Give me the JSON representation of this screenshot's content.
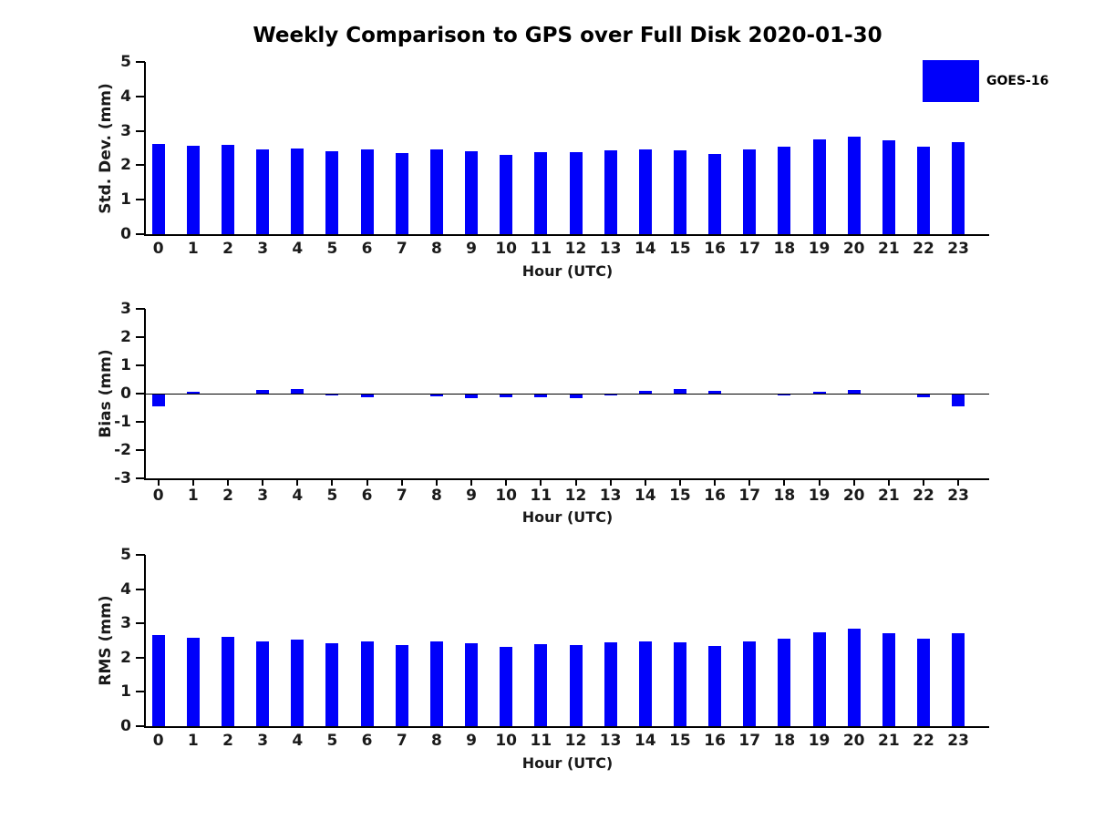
{
  "title": "Weekly Comparison to GPS over Full Disk 2020-01-30",
  "legend": {
    "label": "GOES-16",
    "color": "#0000FA"
  },
  "bar_color": "#0000FA",
  "axis_color": "#000000",
  "chart_data": [
    {
      "type": "bar",
      "name": "stddev-chart",
      "ylabel": "Std. Dev. (mm)",
      "xlabel": "Hour (UTC)",
      "ylim": [
        0,
        5
      ],
      "yticks": [
        0,
        1,
        2,
        3,
        4,
        5
      ],
      "grid": false,
      "legend_label": "GOES-16",
      "categories": [
        "0",
        "1",
        "2",
        "3",
        "4",
        "5",
        "6",
        "7",
        "8",
        "9",
        "10",
        "11",
        "12",
        "13",
        "14",
        "15",
        "16",
        "17",
        "18",
        "19",
        "20",
        "21",
        "22",
        "23"
      ],
      "values": [
        2.63,
        2.57,
        2.6,
        2.46,
        2.5,
        2.41,
        2.45,
        2.36,
        2.45,
        2.4,
        2.31,
        2.39,
        2.37,
        2.43,
        2.47,
        2.43,
        2.34,
        2.46,
        2.55,
        2.74,
        2.82,
        2.72,
        2.53,
        2.67
      ]
    },
    {
      "type": "bar",
      "name": "bias-chart",
      "ylabel": "Bias (mm)",
      "xlabel": "Hour (UTC)",
      "ylim": [
        -3,
        3
      ],
      "yticks": [
        -3,
        -2,
        -1,
        0,
        1,
        2,
        3
      ],
      "grid": false,
      "zero_line": true,
      "legend_label": "GOES-16",
      "categories": [
        "0",
        "1",
        "2",
        "3",
        "4",
        "5",
        "6",
        "7",
        "8",
        "9",
        "10",
        "11",
        "12",
        "13",
        "14",
        "15",
        "16",
        "17",
        "18",
        "19",
        "20",
        "21",
        "22",
        "23"
      ],
      "values": [
        -0.45,
        0.05,
        0.0,
        0.12,
        0.15,
        -0.04,
        -0.1,
        0.0,
        -0.07,
        -0.14,
        -0.1,
        -0.12,
        -0.15,
        -0.03,
        0.1,
        0.17,
        0.1,
        0.0,
        -0.05,
        0.08,
        0.12,
        0.0,
        -0.12,
        -0.45
      ]
    },
    {
      "type": "bar",
      "name": "rms-chart",
      "ylabel": "RMS (mm)",
      "xlabel": "Hour (UTC)",
      "ylim": [
        0,
        5
      ],
      "yticks": [
        0,
        1,
        2,
        3,
        4,
        5
      ],
      "grid": false,
      "legend_label": "GOES-16",
      "categories": [
        "0",
        "1",
        "2",
        "3",
        "4",
        "5",
        "6",
        "7",
        "8",
        "9",
        "10",
        "11",
        "12",
        "13",
        "14",
        "15",
        "16",
        "17",
        "18",
        "19",
        "20",
        "21",
        "22",
        "23"
      ],
      "values": [
        2.66,
        2.58,
        2.61,
        2.48,
        2.52,
        2.42,
        2.47,
        2.37,
        2.47,
        2.42,
        2.32,
        2.4,
        2.38,
        2.44,
        2.48,
        2.45,
        2.35,
        2.48,
        2.56,
        2.73,
        2.84,
        2.72,
        2.55,
        2.71
      ]
    }
  ]
}
